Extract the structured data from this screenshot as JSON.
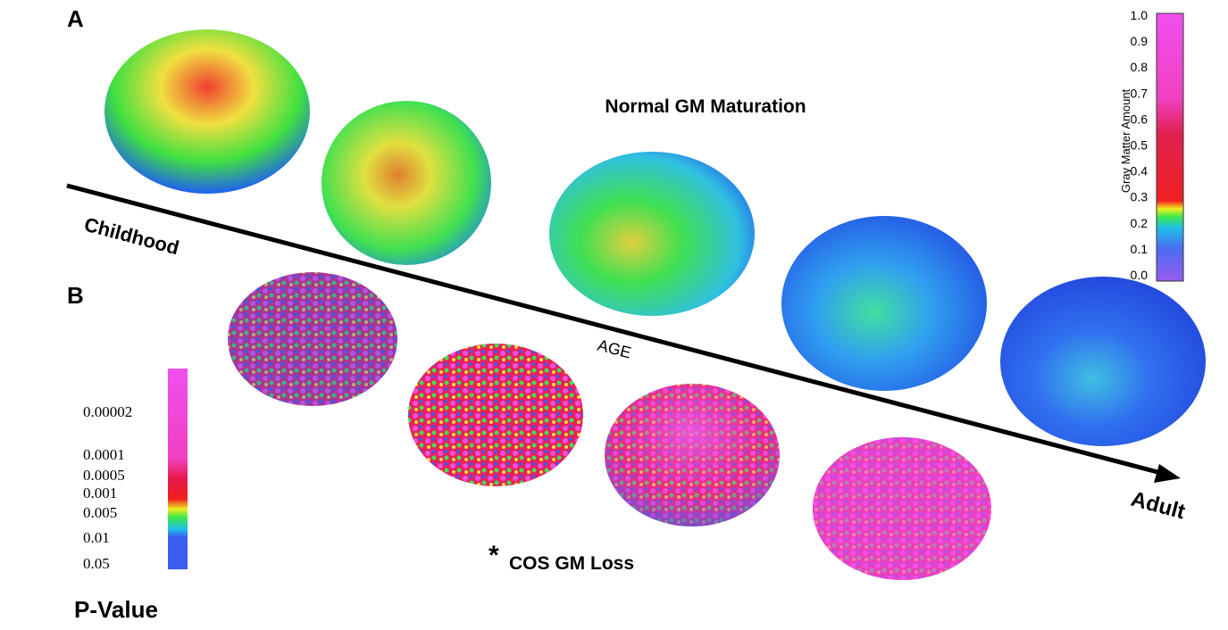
{
  "panels": {
    "a": {
      "label": "A",
      "title": "Normal GM Maturation"
    },
    "b": {
      "label": "B",
      "asterisk": "*",
      "title": "COS GM Loss"
    }
  },
  "age_axis": {
    "start": "Childhood",
    "middle": "AGE",
    "end": "Adult"
  },
  "gm_colorbar": {
    "title": "Gray Matter Amount",
    "ticks": [
      "0.0",
      "0.1",
      "0.2",
      "0.3",
      "0.4",
      "0.5",
      "0.6",
      "0.7",
      "0.8",
      "0.9",
      "1.0"
    ]
  },
  "p_colorbar": {
    "title": "P-Value",
    "ticks": [
      "0.00002",
      "0.0001",
      "0.0005",
      "0.001",
      "0.005",
      "0.01",
      "0.05"
    ]
  }
}
